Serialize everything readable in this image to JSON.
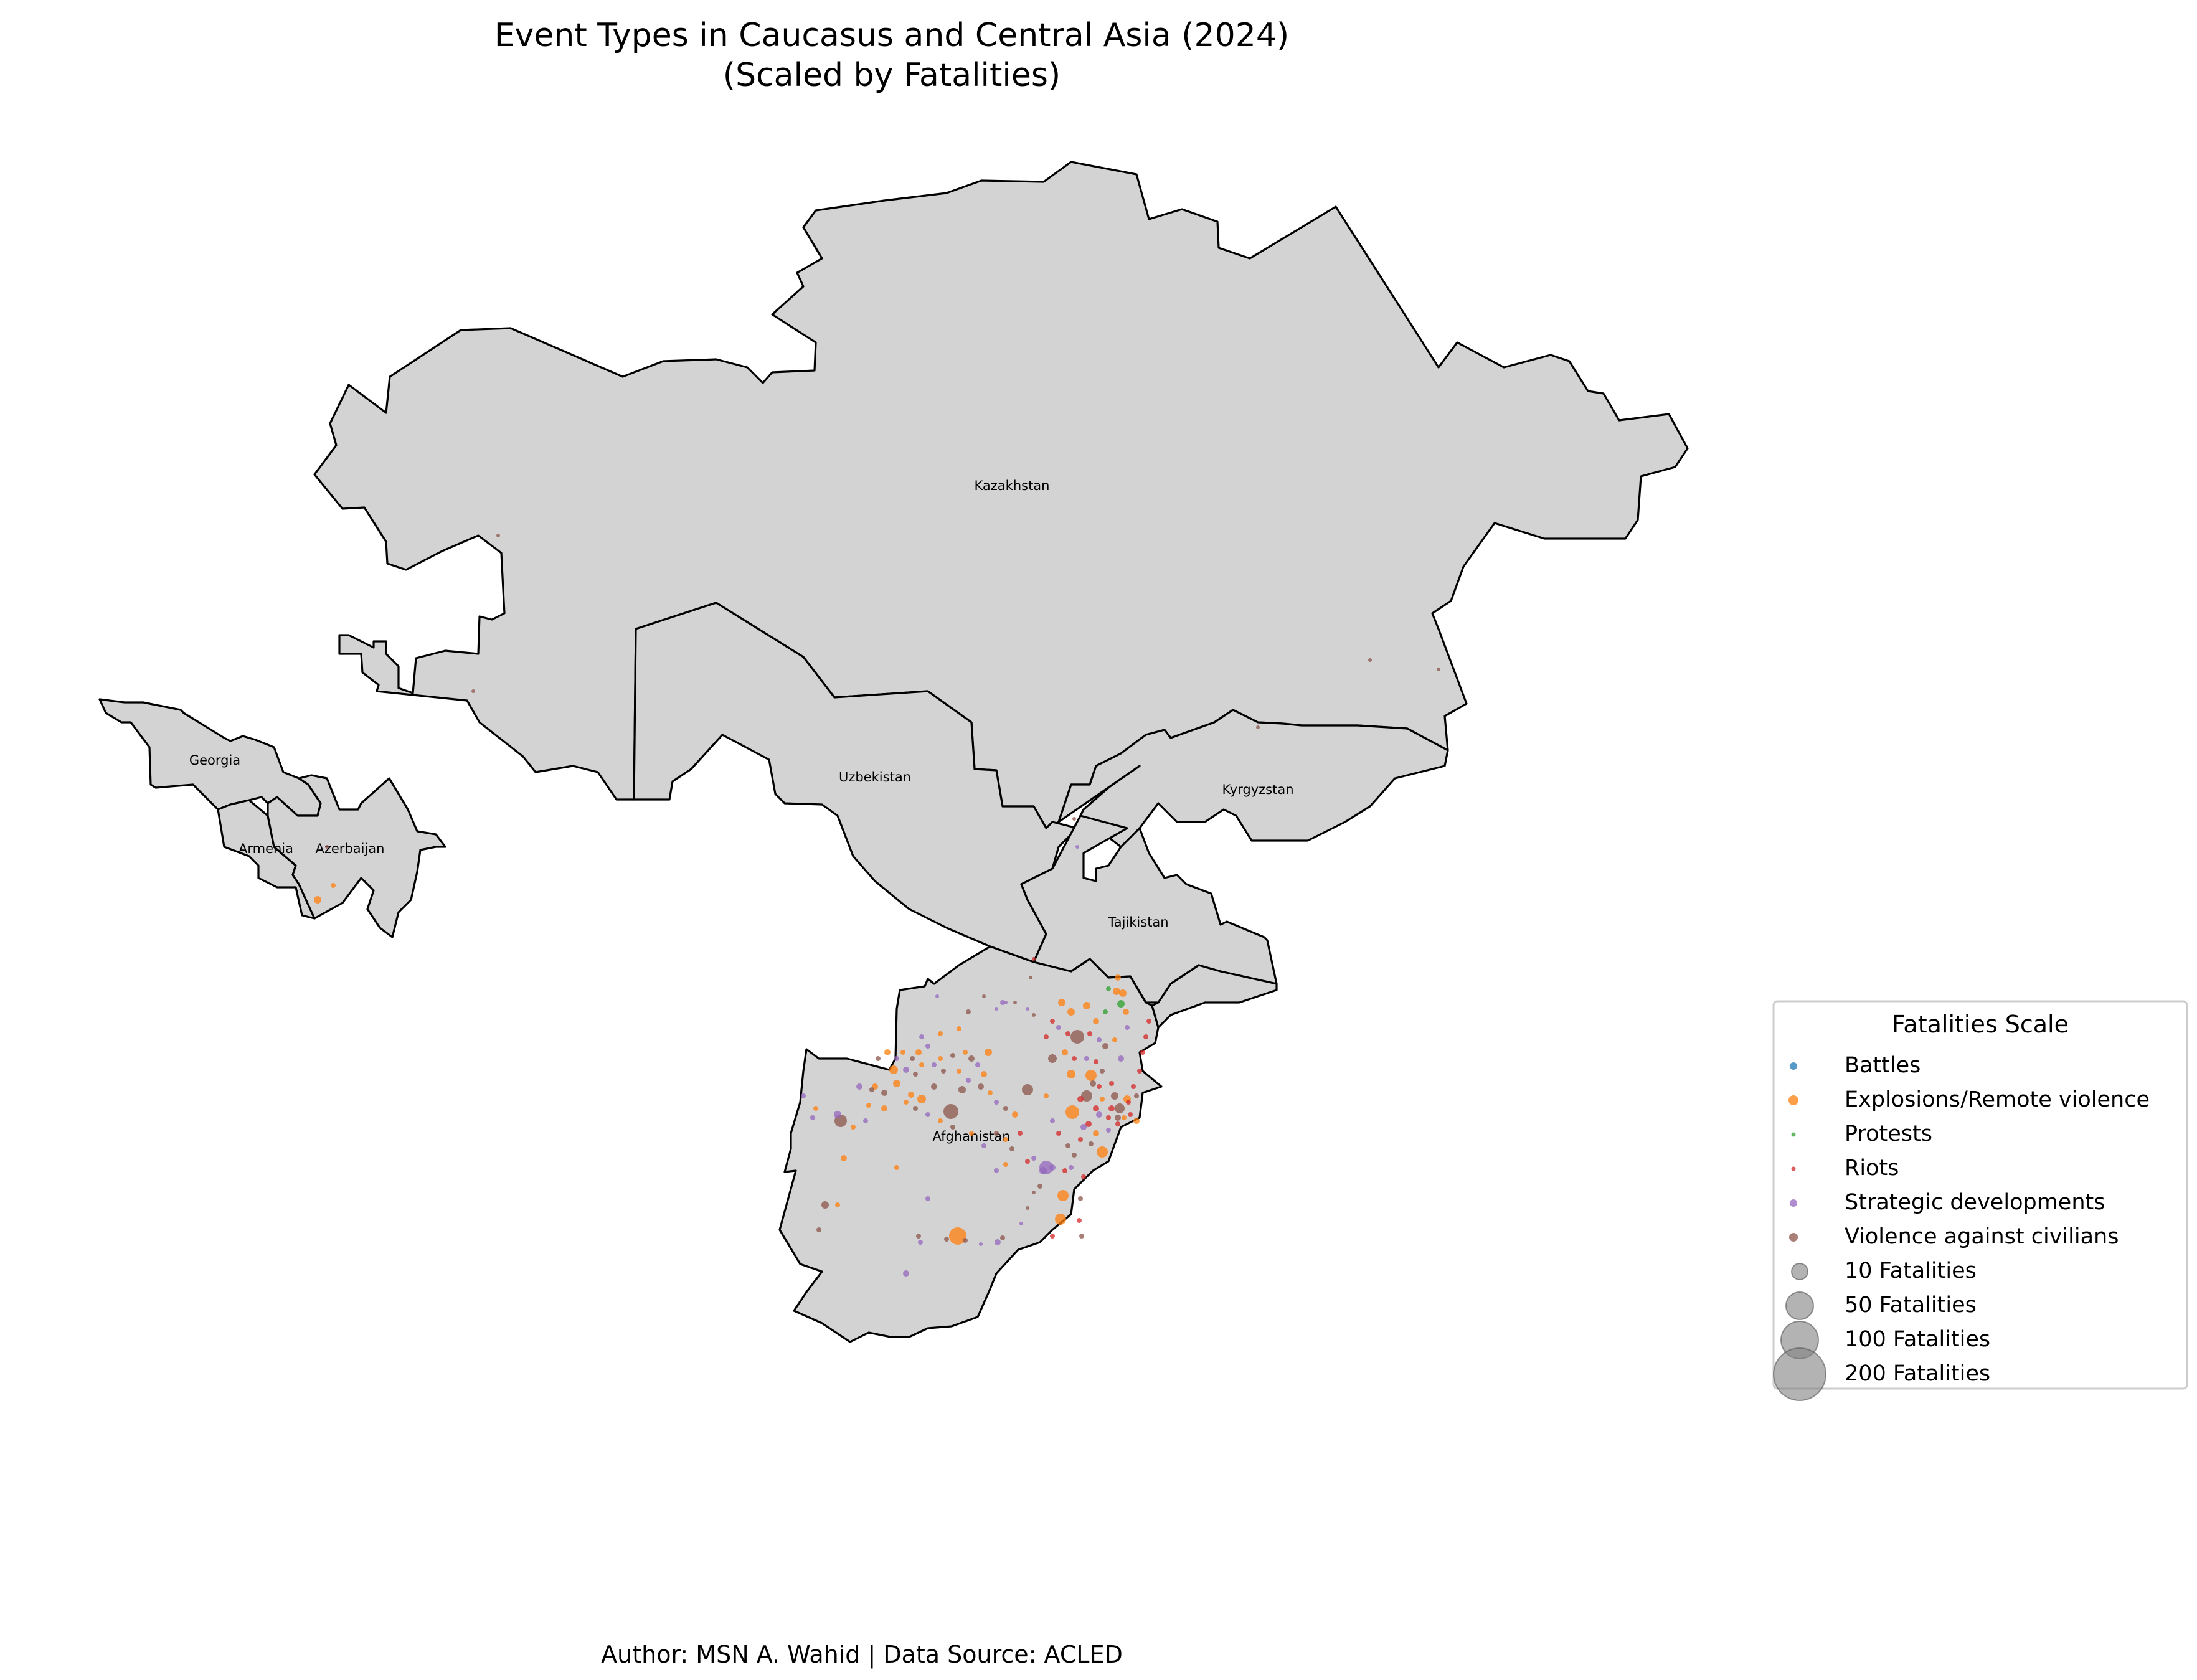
{
  "title_line1": "Event Types in Caucasus and Central Asia (2024)",
  "title_line2": "(Scaled by Fatalities)",
  "footer": "Author: MSN A. Wahid | Data Source: ACLED",
  "country_labels": {
    "kazakhstan": "Kazakhstan",
    "uzbekistan": "Uzbekistan",
    "kyrgyzstan": "Kyrgyzstan",
    "tajikistan": "Tajikistan",
    "afghanistan": "Afghanistan",
    "georgia": "Georgia",
    "armenia": "Armenia",
    "azerbaijan": "Azerbaijan"
  },
  "legend": {
    "title": "Fatalities Scale",
    "event_types": [
      {
        "label": "Battles",
        "color": "#1f77b4"
      },
      {
        "label": "Explosions/Remote violence",
        "color": "#ff7f0e"
      },
      {
        "label": "Protests",
        "color": "#2ca02c"
      },
      {
        "label": "Riots",
        "color": "#d62728"
      },
      {
        "label": "Strategic developments",
        "color": "#9467bd"
      },
      {
        "label": "Violence against civilians",
        "color": "#8c564b"
      }
    ],
    "size_entries": [
      {
        "label": "10 Fatalities",
        "fatalities": 10
      },
      {
        "label": "50 Fatalities",
        "fatalities": 50
      },
      {
        "label": "100 Fatalities",
        "fatalities": 100
      },
      {
        "label": "200 Fatalities",
        "fatalities": 200
      }
    ],
    "size_marker_color": "#808080"
  }
}
